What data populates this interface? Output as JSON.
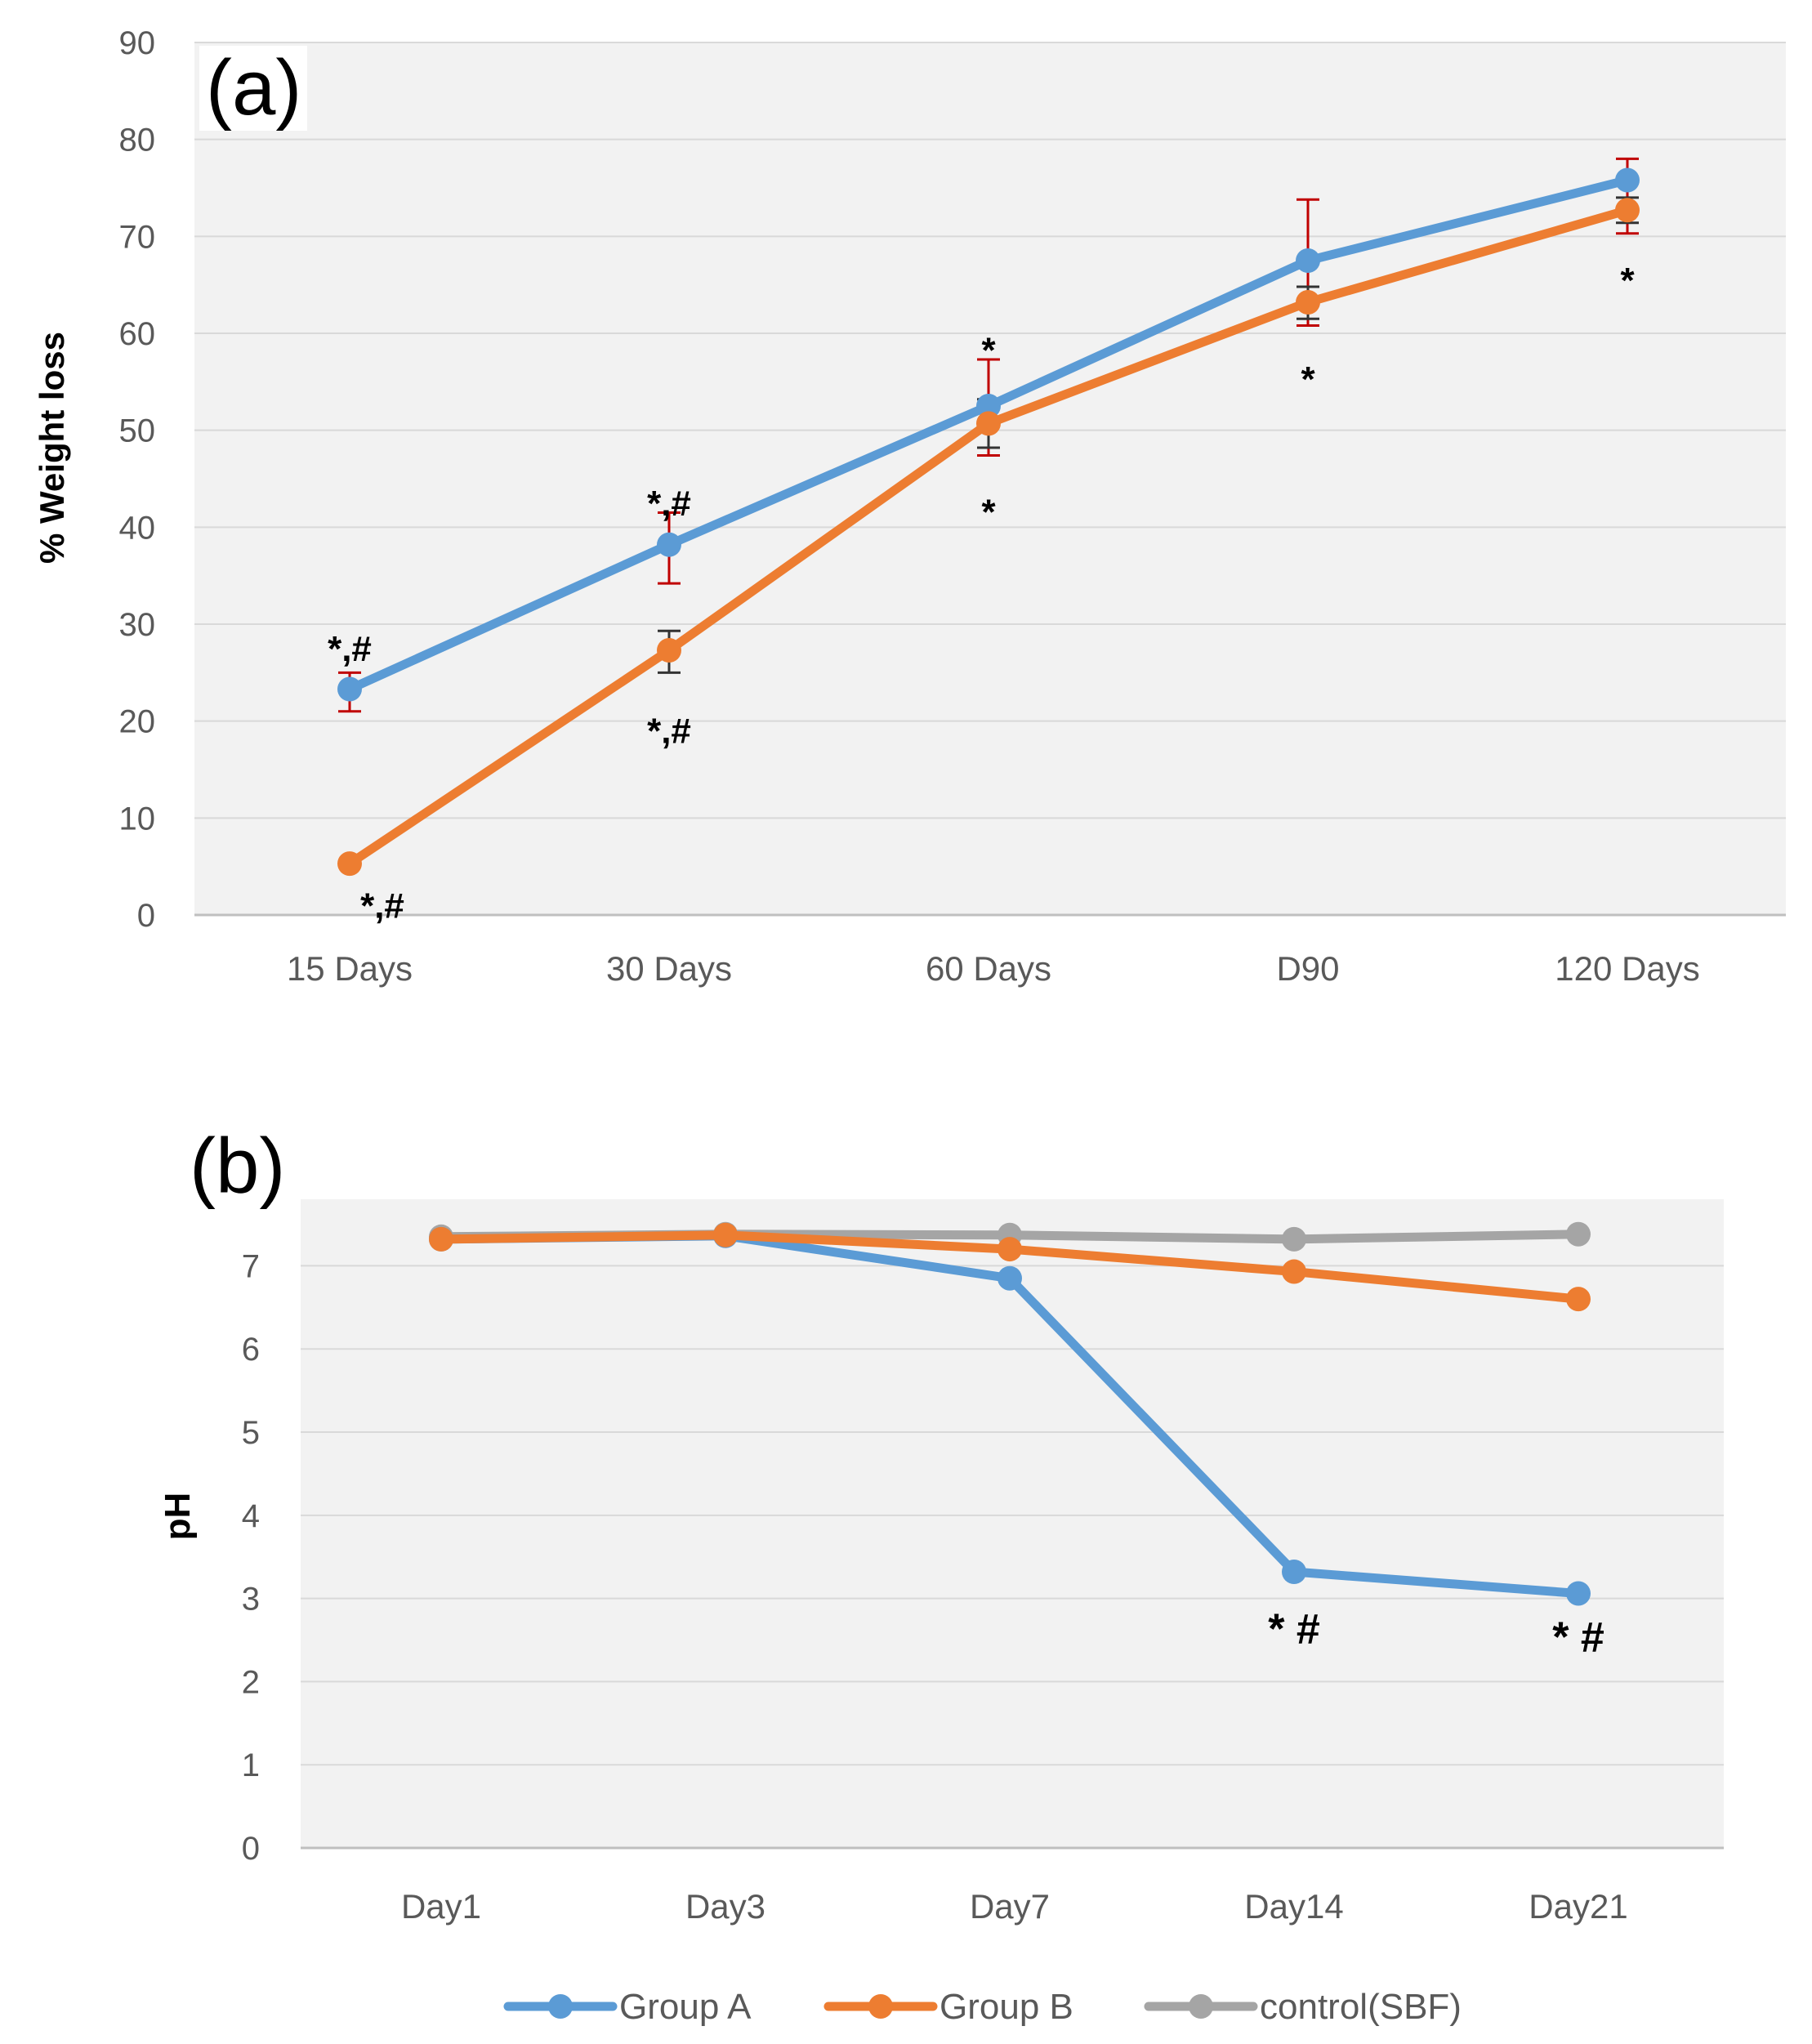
{
  "colors": {
    "group_a": "#5B9BD5",
    "group_b": "#ED7D31",
    "control": "#A5A5A5",
    "plot_bg": "#F2F2F2",
    "grid": "#D9D9D9",
    "error_red": "#C00000",
    "error_black": "#333333",
    "text": "#595959"
  },
  "legend": {
    "items": [
      {
        "label": "Group A",
        "color": "#5B9BD5"
      },
      {
        "label": "Group B",
        "color": "#ED7D31"
      },
      {
        "label": "control(SBF)",
        "color": "#A5A5A5"
      }
    ],
    "placement": "bottom"
  },
  "chart_data": [
    {
      "type": "line",
      "panel_label": "(a)",
      "ylabel": "% Weight loss",
      "xlabel": "",
      "categories": [
        "15 Days",
        "30 Days",
        "60 Days",
        "D90",
        "120 Days"
      ],
      "ylim": [
        0,
        90
      ],
      "yticks": [
        "0",
        "10",
        "20",
        "30",
        "40",
        "50",
        "60",
        "70",
        "80",
        "90"
      ],
      "grid": true,
      "series": [
        {
          "name": "Group A",
          "values": [
            23.3,
            38.2,
            52.5,
            67.5,
            75.8
          ],
          "error_high": [
            25.0,
            41.5,
            57.3,
            73.8,
            78.0
          ],
          "error_low": [
            21.0,
            34.2,
            47.4,
            60.8,
            70.3
          ]
        },
        {
          "name": "Group B",
          "values": [
            5.3,
            27.3,
            50.7,
            63.2,
            72.7
          ],
          "error_high": [
            5.6,
            29.3,
            53.2,
            64.8,
            74.0
          ],
          "error_low": [
            5.0,
            25.0,
            48.2,
            61.5,
            71.4
          ]
        }
      ],
      "annotations": [
        {
          "text": "*,#",
          "x": "15 Days",
          "y": 27.4
        },
        {
          "text": "*,#",
          "x": "15 Days",
          "y": 0.9
        },
        {
          "text": "*,#",
          "x": "30 Days",
          "y": 42.4
        },
        {
          "text": "*,#",
          "x": "30 Days",
          "y": 18.9
        },
        {
          "text": "*",
          "x": "60 Days",
          "y": 58.2
        },
        {
          "text": "*",
          "x": "60 Days",
          "y": 41.5
        },
        {
          "text": "*",
          "x": "D90",
          "y": 55.2
        },
        {
          "text": "*",
          "x": "120 Days",
          "y": 65.4
        }
      ]
    },
    {
      "type": "line",
      "panel_label": "(b)",
      "ylabel": "pH",
      "xlabel": "",
      "categories": [
        "Day1",
        "Day3",
        "Day7",
        "Day14",
        "Day21"
      ],
      "ylim": [
        0,
        7.8
      ],
      "yticks": [
        "0",
        "1",
        "2",
        "3",
        "4",
        "5",
        "6",
        "7"
      ],
      "grid": true,
      "series": [
        {
          "name": "Group A",
          "values": [
            7.32,
            7.36,
            6.85,
            3.32,
            3.06
          ]
        },
        {
          "name": "Group B",
          "values": [
            7.32,
            7.37,
            7.2,
            6.93,
            6.6
          ]
        },
        {
          "name": "control(SBF)",
          "values": [
            7.35,
            7.38,
            7.37,
            7.32,
            7.38
          ]
        }
      ],
      "annotations": [
        {
          "text": "* #",
          "x": "Day14",
          "y": 2.6
        },
        {
          "text": "* #",
          "x": "Day21",
          "y": 2.5
        }
      ]
    }
  ]
}
